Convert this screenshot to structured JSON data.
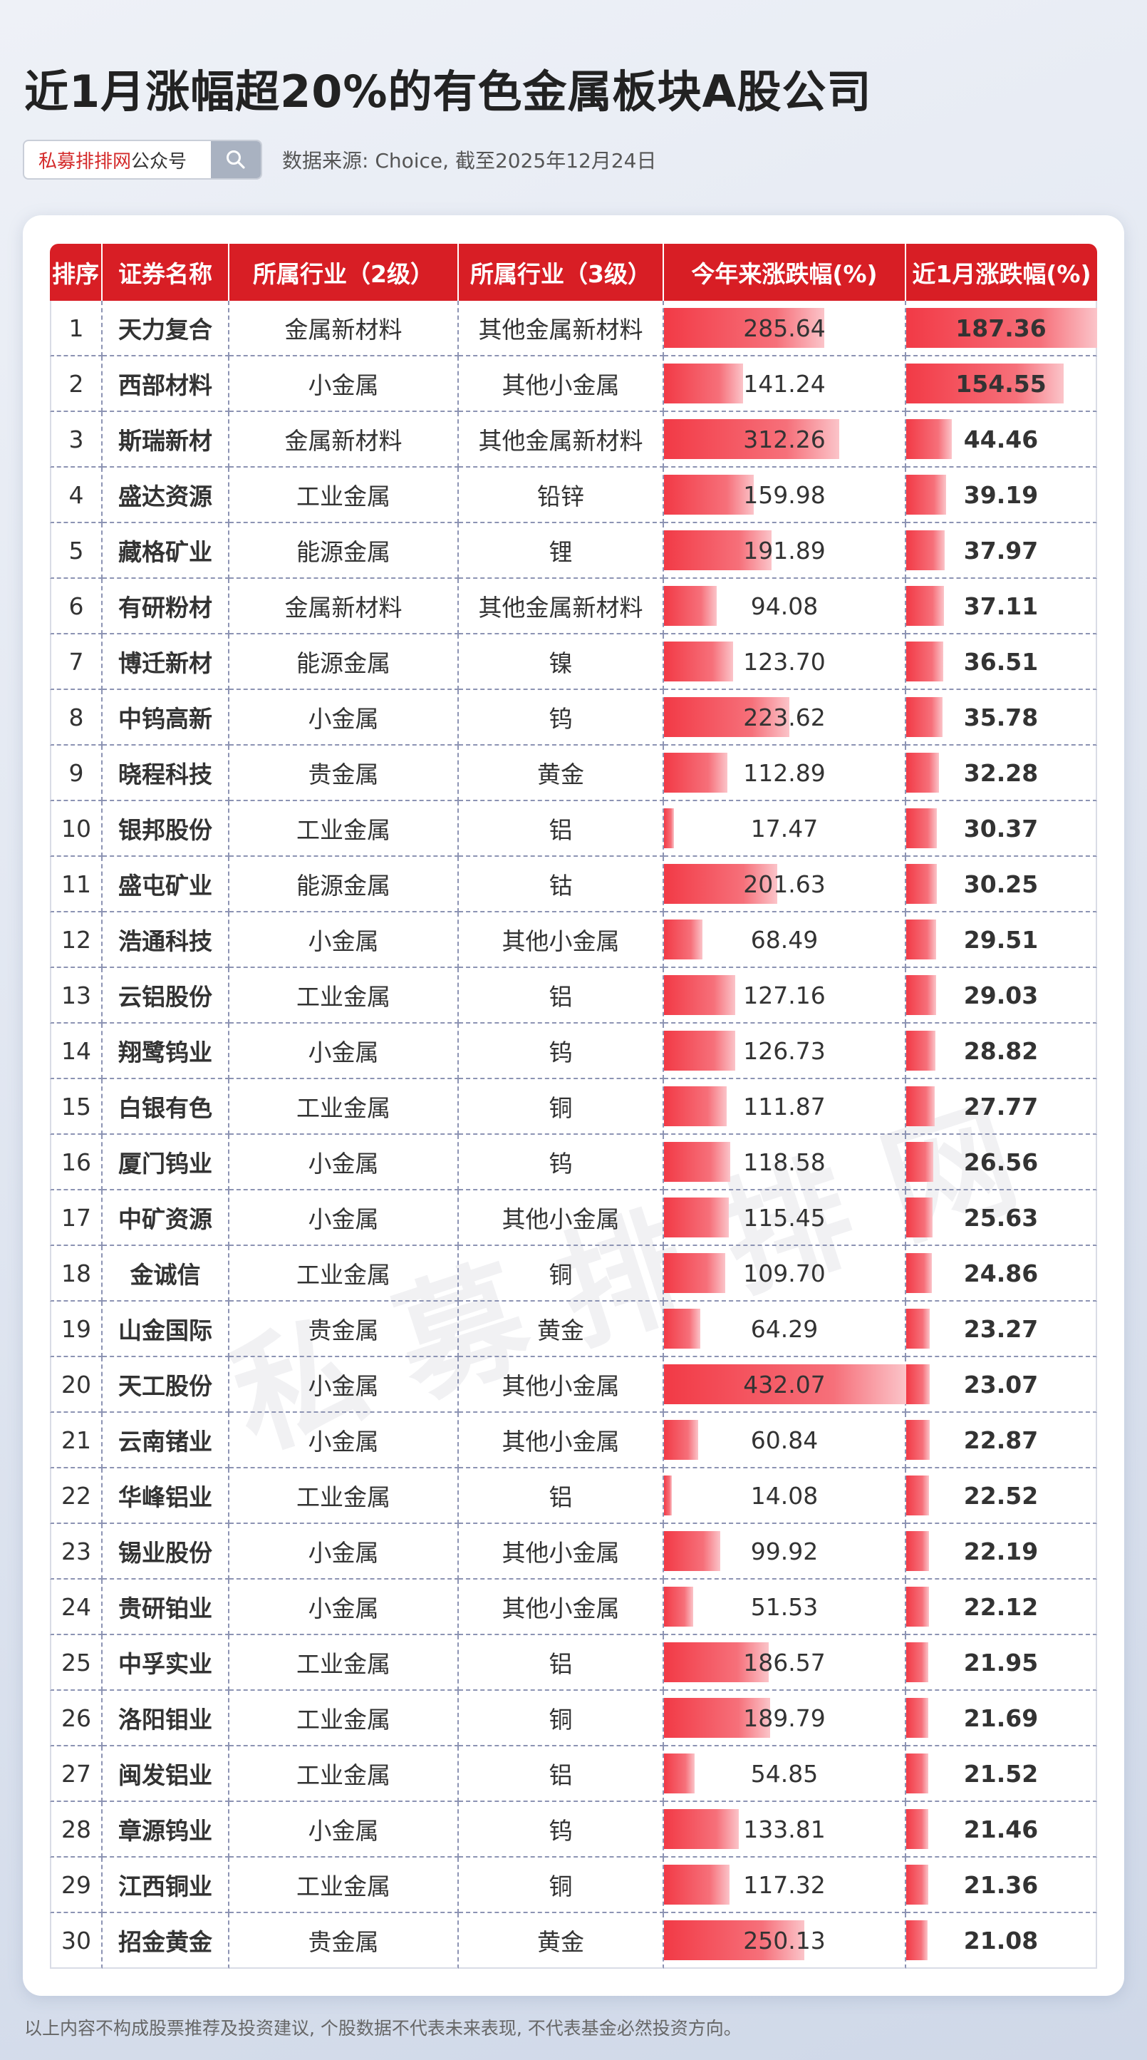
{
  "title": "近1月涨幅超20%的有色金属板块A股公司",
  "search": {
    "brand": "私募排排网",
    "account": "公众号",
    "icon": "search-icon"
  },
  "source": "数据来源: Choice, 截至2025年12月24日",
  "watermark": "私募排排网",
  "table": {
    "headers": [
      "排序",
      "证券名称",
      "所属行业（2级）",
      "所属行业（3级）",
      "今年来涨跌幅(%)",
      "近1月涨跌幅(%)"
    ],
    "rows": [
      {
        "rank": "1",
        "name": "天力复合",
        "ind2": "金属新材料",
        "ind3": "其他金属新材料",
        "ytd": "285.64",
        "m1": "187.36"
      },
      {
        "rank": "2",
        "name": "西部材料",
        "ind2": "小金属",
        "ind3": "其他小金属",
        "ytd": "141.24",
        "m1": "154.55"
      },
      {
        "rank": "3",
        "name": "斯瑞新材",
        "ind2": "金属新材料",
        "ind3": "其他金属新材料",
        "ytd": "312.26",
        "m1": "44.46"
      },
      {
        "rank": "4",
        "name": "盛达资源",
        "ind2": "工业金属",
        "ind3": "铅锌",
        "ytd": "159.98",
        "m1": "39.19"
      },
      {
        "rank": "5",
        "name": "藏格矿业",
        "ind2": "能源金属",
        "ind3": "锂",
        "ytd": "191.89",
        "m1": "37.97"
      },
      {
        "rank": "6",
        "name": "有研粉材",
        "ind2": "金属新材料",
        "ind3": "其他金属新材料",
        "ytd": "94.08",
        "m1": "37.11"
      },
      {
        "rank": "7",
        "name": "博迁新材",
        "ind2": "能源金属",
        "ind3": "镍",
        "ytd": "123.70",
        "m1": "36.51"
      },
      {
        "rank": "8",
        "name": "中钨高新",
        "ind2": "小金属",
        "ind3": "钨",
        "ytd": "223.62",
        "m1": "35.78"
      },
      {
        "rank": "9",
        "name": "晓程科技",
        "ind2": "贵金属",
        "ind3": "黄金",
        "ytd": "112.89",
        "m1": "32.28"
      },
      {
        "rank": "10",
        "name": "银邦股份",
        "ind2": "工业金属",
        "ind3": "铝",
        "ytd": "17.47",
        "m1": "30.37"
      },
      {
        "rank": "11",
        "name": "盛屯矿业",
        "ind2": "能源金属",
        "ind3": "钴",
        "ytd": "201.63",
        "m1": "30.25"
      },
      {
        "rank": "12",
        "name": "浩通科技",
        "ind2": "小金属",
        "ind3": "其他小金属",
        "ytd": "68.49",
        "m1": "29.51"
      },
      {
        "rank": "13",
        "name": "云铝股份",
        "ind2": "工业金属",
        "ind3": "铝",
        "ytd": "127.16",
        "m1": "29.03"
      },
      {
        "rank": "14",
        "name": "翔鹭钨业",
        "ind2": "小金属",
        "ind3": "钨",
        "ytd": "126.73",
        "m1": "28.82"
      },
      {
        "rank": "15",
        "name": "白银有色",
        "ind2": "工业金属",
        "ind3": "铜",
        "ytd": "111.87",
        "m1": "27.77"
      },
      {
        "rank": "16",
        "name": "厦门钨业",
        "ind2": "小金属",
        "ind3": "钨",
        "ytd": "118.58",
        "m1": "26.56"
      },
      {
        "rank": "17",
        "name": "中矿资源",
        "ind2": "小金属",
        "ind3": "其他小金属",
        "ytd": "115.45",
        "m1": "25.63"
      },
      {
        "rank": "18",
        "name": "金诚信",
        "ind2": "工业金属",
        "ind3": "铜",
        "ytd": "109.70",
        "m1": "24.86"
      },
      {
        "rank": "19",
        "name": "山金国际",
        "ind2": "贵金属",
        "ind3": "黄金",
        "ytd": "64.29",
        "m1": "23.27"
      },
      {
        "rank": "20",
        "name": "天工股份",
        "ind2": "小金属",
        "ind3": "其他小金属",
        "ytd": "432.07",
        "m1": "23.07"
      },
      {
        "rank": "21",
        "name": "云南锗业",
        "ind2": "小金属",
        "ind3": "其他小金属",
        "ytd": "60.84",
        "m1": "22.87"
      },
      {
        "rank": "22",
        "name": "华峰铝业",
        "ind2": "工业金属",
        "ind3": "铝",
        "ytd": "14.08",
        "m1": "22.52"
      },
      {
        "rank": "23",
        "name": "锡业股份",
        "ind2": "小金属",
        "ind3": "其他小金属",
        "ytd": "99.92",
        "m1": "22.19"
      },
      {
        "rank": "24",
        "name": "贵研铂业",
        "ind2": "小金属",
        "ind3": "其他小金属",
        "ytd": "51.53",
        "m1": "22.12"
      },
      {
        "rank": "25",
        "name": "中孚实业",
        "ind2": "工业金属",
        "ind3": "铝",
        "ytd": "186.57",
        "m1": "21.95"
      },
      {
        "rank": "26",
        "name": "洛阳钼业",
        "ind2": "工业金属",
        "ind3": "铜",
        "ytd": "189.79",
        "m1": "21.69"
      },
      {
        "rank": "27",
        "name": "闽发铝业",
        "ind2": "工业金属",
        "ind3": "铝",
        "ytd": "54.85",
        "m1": "21.52"
      },
      {
        "rank": "28",
        "name": "章源钨业",
        "ind2": "小金属",
        "ind3": "钨",
        "ytd": "133.81",
        "m1": "21.46"
      },
      {
        "rank": "29",
        "name": "江西铜业",
        "ind2": "工业金属",
        "ind3": "铜",
        "ytd": "117.32",
        "m1": "21.36"
      },
      {
        "rank": "30",
        "name": "招金黄金",
        "ind2": "贵金属",
        "ind3": "黄金",
        "ytd": "250.13",
        "m1": "21.08"
      }
    ]
  },
  "footer": "以上内容不构成股票推荐及投资建议, 个股数据不代表未来表现, 不代表基金必然投资方向。",
  "colors": {
    "header_bg": "#d81e25",
    "bar": "#f23a46",
    "accent": "#d42a2a"
  }
}
